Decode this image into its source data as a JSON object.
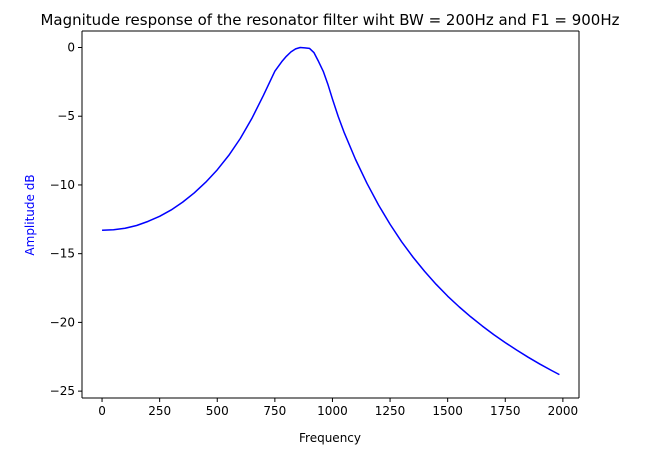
{
  "chart_data": {
    "type": "line",
    "title": "Magnitude response of the resonator filter wiht BW = 200Hz and F1 = 900Hz",
    "xlabel": "Frequency",
    "ylabel": "Amplitude dB",
    "ylabel_color": "#0000ff",
    "xlim": [
      -87,
      2070
    ],
    "ylim": [
      -25.5,
      1.2
    ],
    "grid": false,
    "xticks": [
      0,
      250,
      500,
      750,
      1000,
      1250,
      1500,
      1750,
      2000
    ],
    "xtick_labels": [
      "0",
      "250",
      "500",
      "750",
      "1000",
      "1250",
      "1500",
      "1750",
      "2000"
    ],
    "yticks": [
      0,
      -5,
      -10,
      -15,
      -20,
      -25
    ],
    "ytick_labels": [
      "0",
      "−5",
      "−10",
      "−15",
      "−20",
      "−25"
    ],
    "series": [
      {
        "color": "#0000ff",
        "x": [
          0,
          50,
          100,
          150,
          200,
          250,
          300,
          350,
          400,
          450,
          500,
          550,
          600,
          650,
          700,
          750,
          780,
          800,
          820,
          840,
          860,
          880,
          900,
          920,
          940,
          960,
          980,
          1000,
          1025,
          1050,
          1100,
          1150,
          1200,
          1250,
          1300,
          1350,
          1400,
          1450,
          1500,
          1550,
          1600,
          1650,
          1700,
          1750,
          1800,
          1850,
          1900,
          1950,
          1985
        ],
        "y": [
          -13.3,
          -13.26,
          -13.15,
          -12.95,
          -12.65,
          -12.28,
          -11.82,
          -11.25,
          -10.58,
          -9.8,
          -8.9,
          -7.85,
          -6.62,
          -5.17,
          -3.5,
          -1.72,
          -1.03,
          -0.64,
          -0.32,
          -0.1,
          0.0,
          -0.03,
          -0.06,
          -0.38,
          -1.03,
          -1.73,
          -2.67,
          -3.75,
          -5.02,
          -6.15,
          -8.14,
          -9.89,
          -11.46,
          -12.86,
          -14.13,
          -15.26,
          -16.29,
          -17.23,
          -18.09,
          -18.87,
          -19.59,
          -20.26,
          -20.89,
          -21.47,
          -22.02,
          -22.54,
          -23.03,
          -23.49,
          -23.8
        ]
      }
    ]
  }
}
